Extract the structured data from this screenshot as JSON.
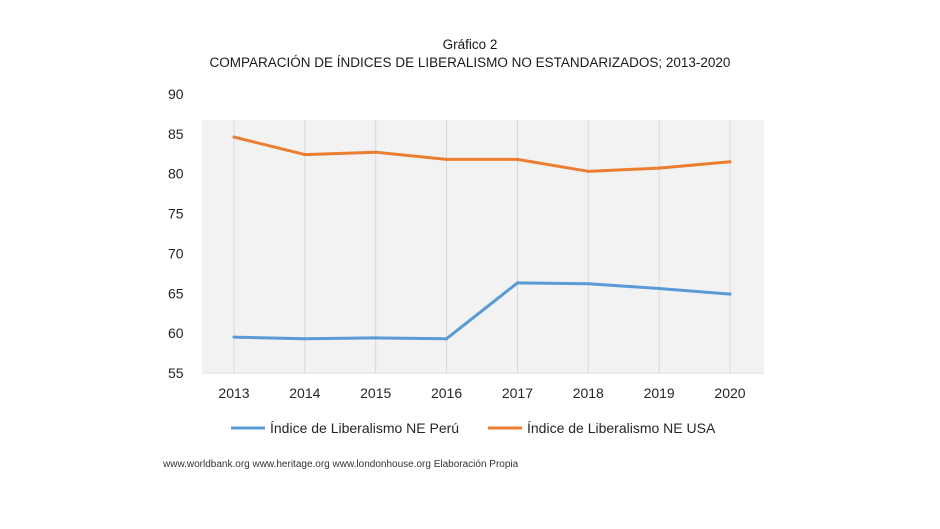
{
  "header": {
    "title": "Gráfico 2",
    "subtitle": "COMPARACIÓN DE ÍNDICES DE LIBERALISMO NO ESTANDARIZADOS; 2013-2020"
  },
  "chart_data": {
    "type": "line",
    "title": "Gráfico 2",
    "subtitle": "COMPARACIÓN DE ÍNDICES DE LIBERALISMO NO ESTANDARIZADOS; 2013-2020",
    "x": [
      "2013",
      "2014",
      "2015",
      "2016",
      "2017",
      "2018",
      "2019",
      "2020"
    ],
    "yticks": [
      "90",
      "85",
      "80",
      "75",
      "70",
      "65",
      "60",
      "55"
    ],
    "ylim": [
      55,
      90
    ],
    "grid": "vertical",
    "legend": "bottom",
    "series": [
      {
        "name": "Índice de Liberalismo NE Perú",
        "color": "#5b9bd5",
        "values": [
          59.5,
          59.3,
          59.4,
          59.3,
          66.3,
          66.2,
          65.6,
          64.9
        ]
      },
      {
        "name": "Índice de Liberalismo NE USA",
        "color": "#ed7d31",
        "values": [
          84.6,
          82.4,
          82.7,
          81.8,
          81.8,
          80.3,
          80.7,
          81.5
        ]
      }
    ]
  },
  "footer": {
    "source": "www.worldbank.org www.heritage.org www.londonhouse.org Elaboración Propia"
  }
}
